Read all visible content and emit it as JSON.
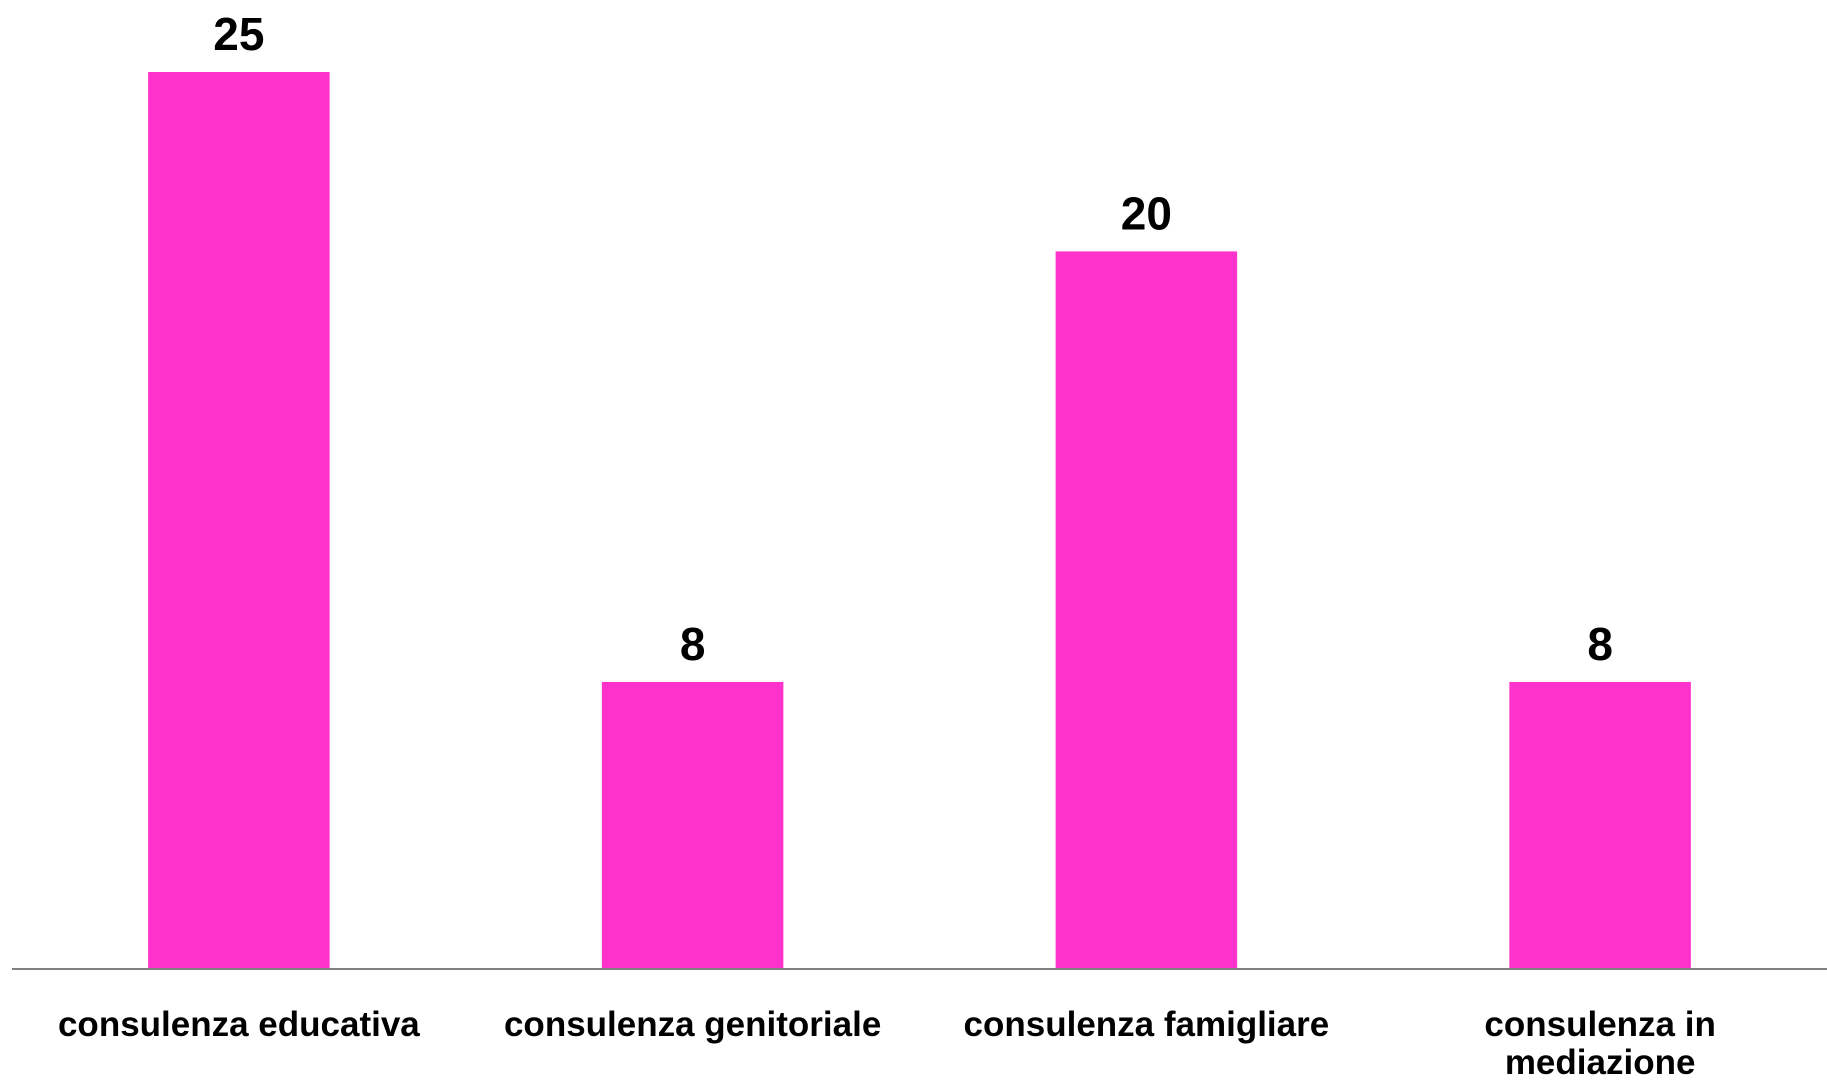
{
  "chart_data": {
    "type": "bar",
    "categories": [
      "consulenza educativa",
      "consulenza genitoriale",
      "consulenza famigliare",
      "consulenza in mediazione"
    ],
    "values": [
      25,
      8,
      20,
      8
    ],
    "color": "#ff33cc",
    "ylim": [
      0,
      25
    ]
  }
}
